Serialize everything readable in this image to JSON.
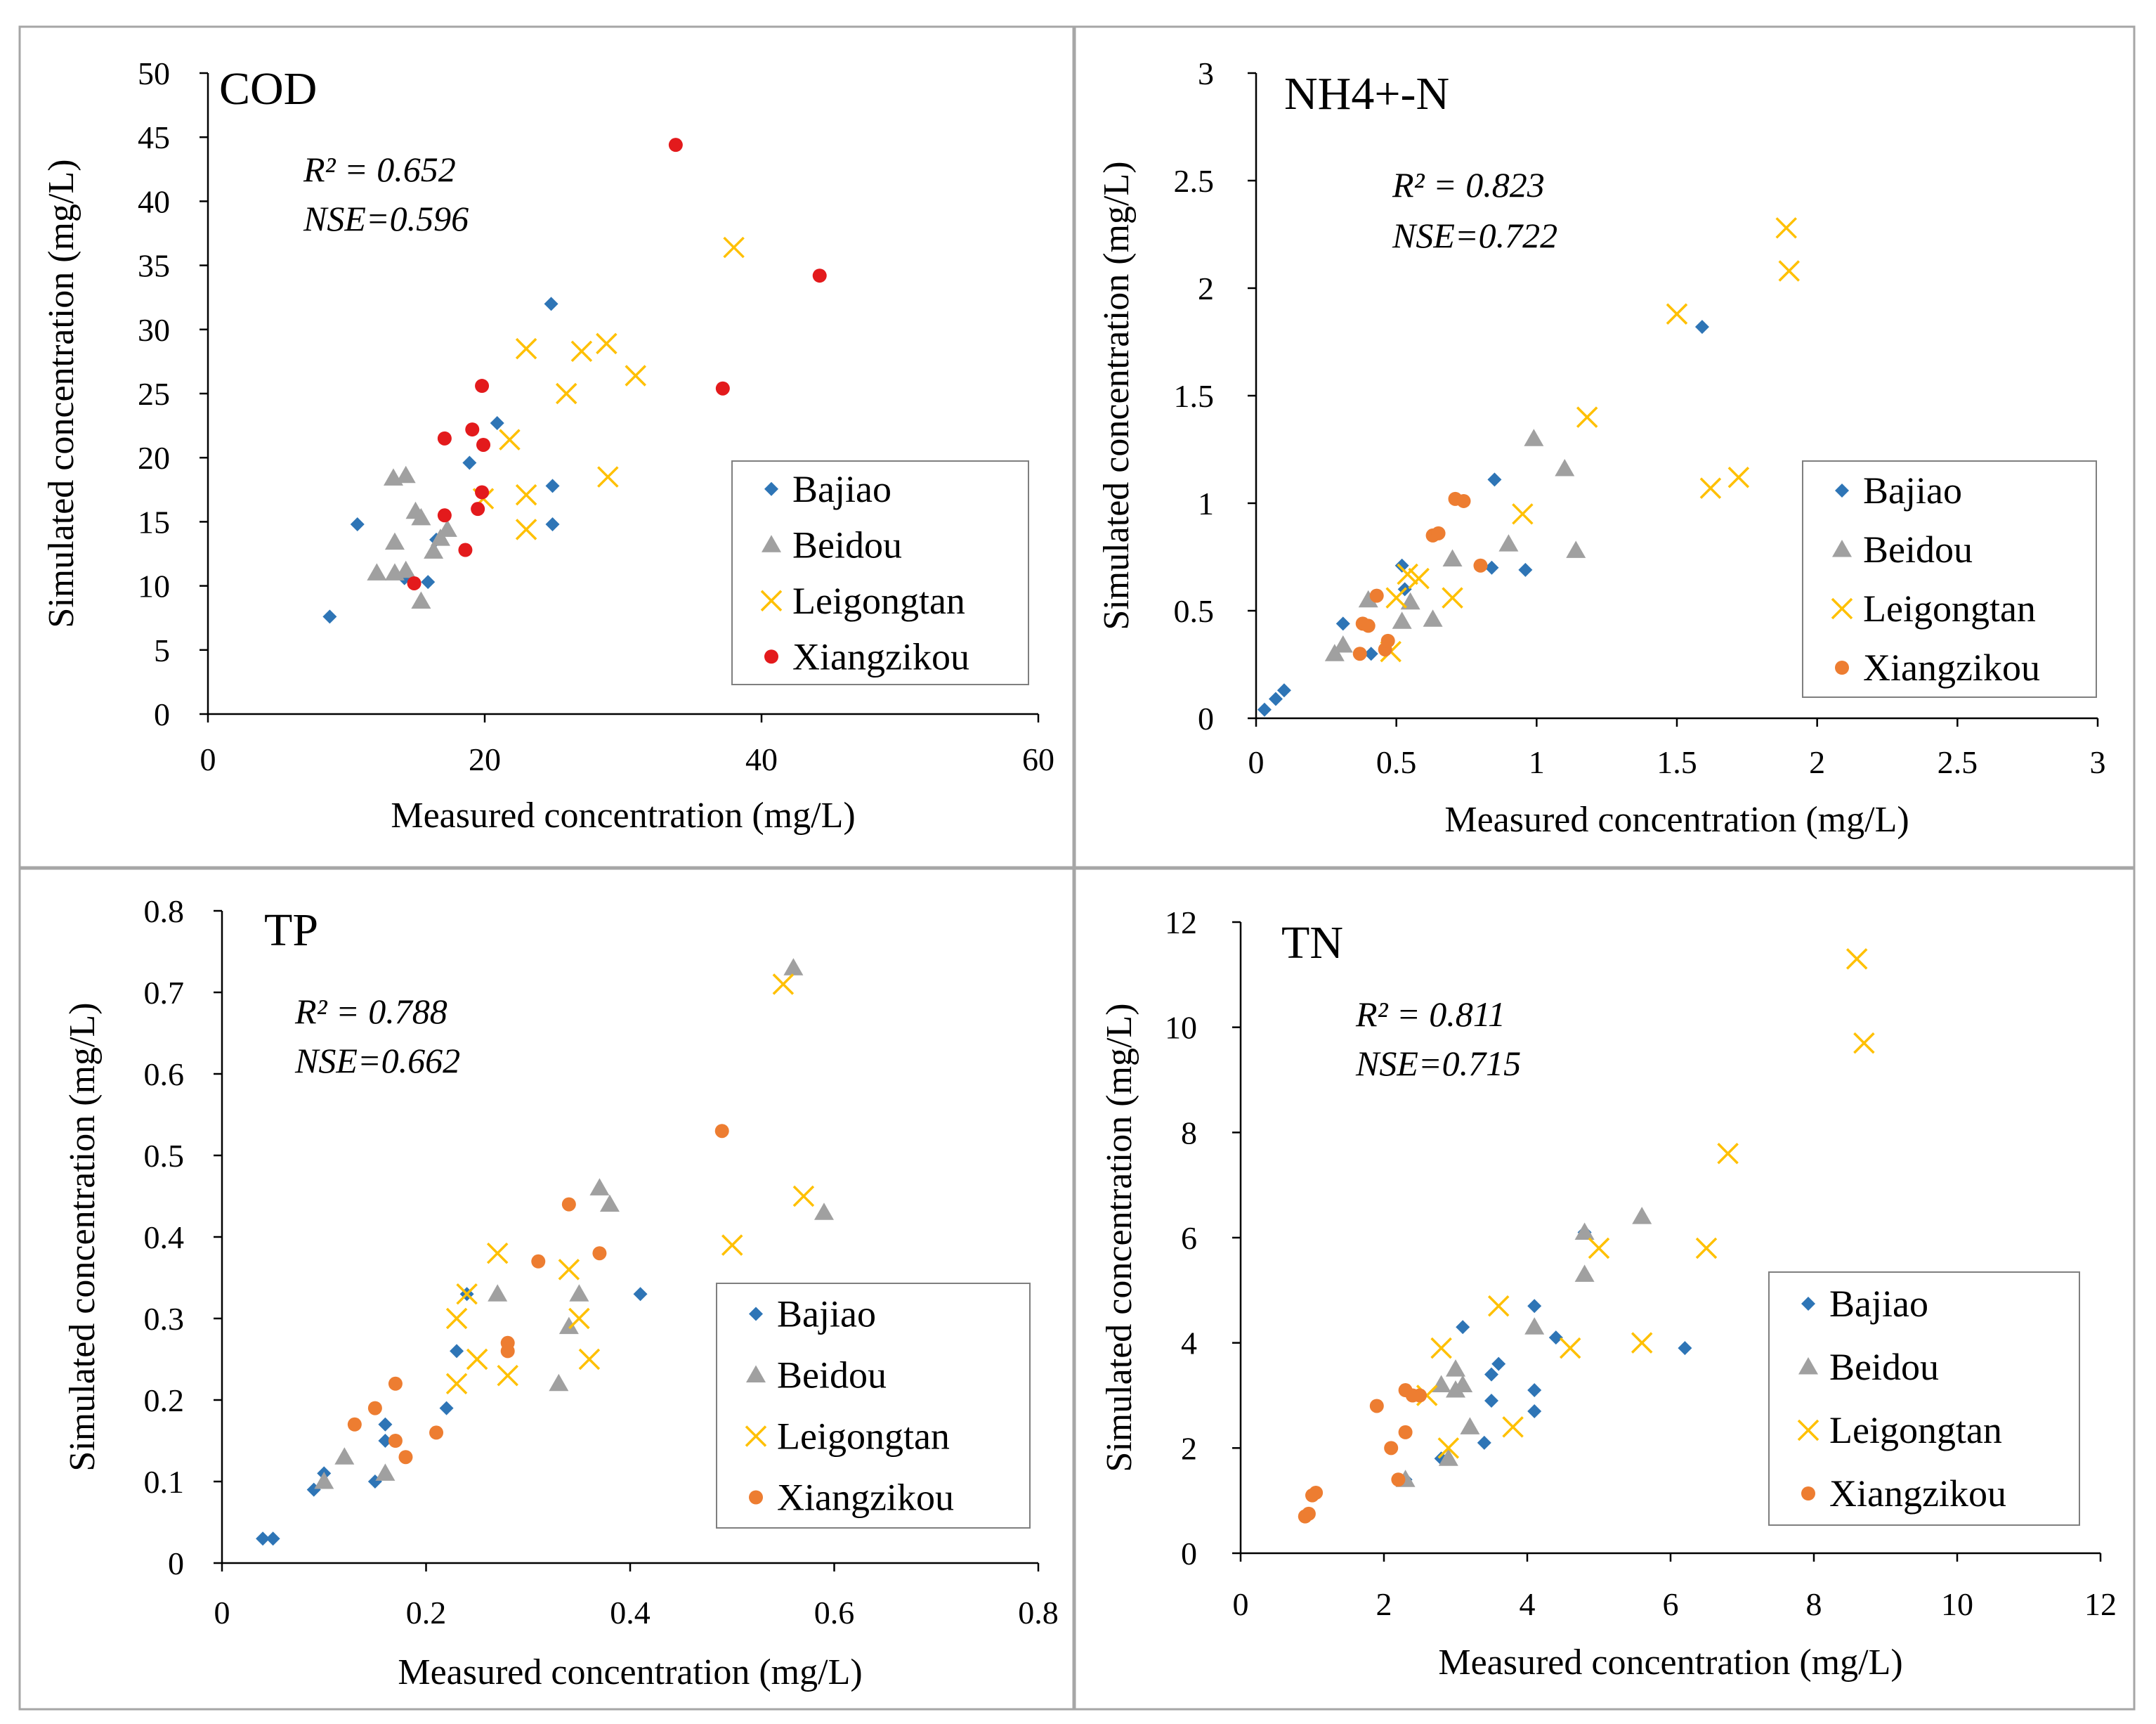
{
  "colors": {
    "Bajiao": "#2E75B6",
    "Beidou": "#A0A0A0",
    "Leigongtan": "#FFC000",
    "Xiangzikou_red": "#E31A1C",
    "Xiangzikou_orange": "#ED7D31",
    "frame": "#A6A6A6",
    "axis": "#000000"
  },
  "chart_data": [
    {
      "type": "scatter",
      "title": "COD",
      "stats": [
        "R² = 0.652",
        "NSE=0.596"
      ],
      "xlabel": "Measured  concentration (mg/L)",
      "ylabel": "Simulated concentration (mg/L)",
      "xlim": [
        0,
        60
      ],
      "ylim": [
        0,
        50
      ],
      "xticks": [
        0,
        20,
        40,
        60
      ],
      "yticks": [
        0,
        5,
        10,
        15,
        20,
        25,
        30,
        35,
        40,
        45,
        50
      ],
      "xtick_labels": [
        "0",
        "20",
        "40",
        "60"
      ],
      "ytick_labels": [
        "0",
        "5",
        "10",
        "15",
        "20",
        "25",
        "30",
        "35",
        "40",
        "45",
        "50"
      ],
      "legend_position": "bottom-right",
      "legend": [
        "Bajiao",
        "Beidou",
        "Leigongtan",
        "Xiangzikou"
      ],
      "series": [
        {
          "name": "Bajiao",
          "marker": "diamond",
          "color_key": "Bajiao",
          "points": [
            [
              8.8,
              7.6
            ],
            [
              10.8,
              14.8
            ],
            [
              14.2,
              10.6
            ],
            [
              15.9,
              10.3
            ],
            [
              16.5,
              13.6
            ],
            [
              18.9,
              19.6
            ],
            [
              20.9,
              22.7
            ],
            [
              24.8,
              32.0
            ],
            [
              24.9,
              17.8
            ],
            [
              24.9,
              14.8
            ]
          ]
        },
        {
          "name": "Beidou",
          "marker": "triangle",
          "color_key": "Beidou",
          "points": [
            [
              12.2,
              11.0
            ],
            [
              13.4,
              18.4
            ],
            [
              14.3,
              18.6
            ],
            [
              13.5,
              13.4
            ],
            [
              14.3,
              11.2
            ],
            [
              13.5,
              11.0
            ],
            [
              15.0,
              15.8
            ],
            [
              15.4,
              15.3
            ],
            [
              15.4,
              8.8
            ],
            [
              16.3,
              12.7
            ],
            [
              17.3,
              14.4
            ],
            [
              16.8,
              13.7
            ]
          ]
        },
        {
          "name": "Leigongtan",
          "marker": "x",
          "color_key": "Leigongtan",
          "points": [
            [
              19.9,
              16.8
            ],
            [
              21.8,
              21.4
            ],
            [
              23.0,
              28.5
            ],
            [
              23.0,
              17.1
            ],
            [
              23.0,
              14.4
            ],
            [
              25.9,
              25.0
            ],
            [
              27.0,
              28.3
            ],
            [
              28.8,
              28.9
            ],
            [
              28.9,
              18.5
            ],
            [
              30.9,
              26.4
            ],
            [
              38.0,
              36.4
            ]
          ]
        },
        {
          "name": "Xiangzikou",
          "marker": "circle",
          "color_key": "Xiangzikou_red",
          "points": [
            [
              14.9,
              10.2
            ],
            [
              17.1,
              21.5
            ],
            [
              17.1,
              15.5
            ],
            [
              18.6,
              12.8
            ],
            [
              19.1,
              22.2
            ],
            [
              19.8,
              25.6
            ],
            [
              19.9,
              21.0
            ],
            [
              19.8,
              17.3
            ],
            [
              19.5,
              16.0
            ],
            [
              33.8,
              44.4
            ],
            [
              37.2,
              25.4
            ],
            [
              44.2,
              34.2
            ]
          ]
        }
      ]
    },
    {
      "type": "scatter",
      "title": "NH4+-N",
      "stats": [
        "R² = 0.823",
        "NSE=0.722"
      ],
      "xlabel": "Measured  concentration (mg/L)",
      "ylabel": "Simulated concentration (mg/L)",
      "xlim": [
        0,
        3
      ],
      "ylim": [
        0,
        3
      ],
      "xticks": [
        0,
        0.5,
        1,
        1.5,
        2,
        2.5,
        3
      ],
      "yticks": [
        0,
        0.5,
        1,
        1.5,
        2,
        2.5,
        3
      ],
      "xtick_labels": [
        "0",
        "0.5",
        "1",
        "1.5",
        "2",
        "2.5",
        "3"
      ],
      "ytick_labels": [
        "0",
        "0.5",
        "1",
        "1.5",
        "2",
        "2.5",
        "3"
      ],
      "legend_position": "bottom-right",
      "legend": [
        "Bajiao",
        "Beidou",
        "Leigongtan",
        "Xiangzikou"
      ],
      "series": [
        {
          "name": "Bajiao",
          "marker": "diamond",
          "color_key": "Bajiao",
          "points": [
            [
              0.03,
              0.04
            ],
            [
              0.07,
              0.09
            ],
            [
              0.1,
              0.13
            ],
            [
              0.31,
              0.44
            ],
            [
              0.41,
              0.3
            ],
            [
              0.52,
              0.71
            ],
            [
              0.53,
              0.6
            ],
            [
              0.84,
              0.7
            ],
            [
              0.85,
              1.11
            ],
            [
              0.96,
              0.69
            ],
            [
              1.59,
              1.82
            ]
          ]
        },
        {
          "name": "Beidou",
          "marker": "triangle",
          "color_key": "Beidou",
          "points": [
            [
              0.28,
              0.3
            ],
            [
              0.31,
              0.34
            ],
            [
              0.4,
              0.55
            ],
            [
              0.52,
              0.45
            ],
            [
              0.55,
              0.54
            ],
            [
              0.63,
              0.46
            ],
            [
              0.7,
              0.74
            ],
            [
              0.9,
              0.81
            ],
            [
              0.99,
              1.3
            ],
            [
              1.1,
              1.16
            ],
            [
              1.14,
              0.78
            ]
          ]
        },
        {
          "name": "Leigongtan",
          "marker": "x",
          "color_key": "Leigongtan",
          "points": [
            [
              0.48,
              0.31
            ],
            [
              0.5,
              0.56
            ],
            [
              0.54,
              0.67
            ],
            [
              0.58,
              0.65
            ],
            [
              0.7,
              0.56
            ],
            [
              0.95,
              0.95
            ],
            [
              1.18,
              1.4
            ],
            [
              1.5,
              1.88
            ],
            [
              1.62,
              1.07
            ],
            [
              1.72,
              1.12
            ],
            [
              1.89,
              2.28
            ],
            [
              1.9,
              2.08
            ]
          ]
        },
        {
          "name": "Xiangzikou",
          "marker": "circle",
          "color_key": "Xiangzikou_orange",
          "points": [
            [
              0.37,
              0.3
            ],
            [
              0.38,
              0.44
            ],
            [
              0.4,
              0.43
            ],
            [
              0.43,
              0.57
            ],
            [
              0.46,
              0.32
            ],
            [
              0.47,
              0.36
            ],
            [
              0.63,
              0.85
            ],
            [
              0.65,
              0.86
            ],
            [
              0.71,
              1.02
            ],
            [
              0.74,
              1.01
            ],
            [
              0.8,
              0.71
            ]
          ]
        }
      ]
    },
    {
      "type": "scatter",
      "title": "TP",
      "stats": [
        "R² = 0.788",
        "NSE=0.662"
      ],
      "xlabel": "Measured  concentration (mg/L)",
      "ylabel": "Simulated concentration (mg/L)",
      "xlim": [
        0,
        0.8
      ],
      "ylim": [
        0,
        0.8
      ],
      "xticks": [
        0,
        0.2,
        0.4,
        0.6,
        0.8
      ],
      "yticks": [
        0,
        0.1,
        0.2,
        0.3,
        0.4,
        0.5,
        0.6,
        0.7,
        0.8
      ],
      "xtick_labels": [
        "0",
        "0.2",
        "0.4",
        "0.6",
        "0.8"
      ],
      "ytick_labels": [
        "0",
        "0.1",
        "0.2",
        "0.3",
        "0.4",
        "0.5",
        "0.6",
        "0.7",
        "0.8"
      ],
      "legend_position": "bottom-right",
      "legend": [
        "Bajiao",
        "Beidou",
        "Leigongtan",
        "Xiangzikou"
      ],
      "series": [
        {
          "name": "Bajiao",
          "marker": "diamond",
          "color_key": "Bajiao",
          "points": [
            [
              0.04,
              0.03
            ],
            [
              0.05,
              0.03
            ],
            [
              0.09,
              0.09
            ],
            [
              0.1,
              0.11
            ],
            [
              0.15,
              0.1
            ],
            [
              0.16,
              0.17
            ],
            [
              0.16,
              0.15
            ],
            [
              0.22,
              0.19
            ],
            [
              0.23,
              0.26
            ],
            [
              0.24,
              0.33
            ],
            [
              0.41,
              0.33
            ]
          ]
        },
        {
          "name": "Beidou",
          "marker": "triangle",
          "color_key": "Beidou",
          "points": [
            [
              0.1,
              0.1
            ],
            [
              0.12,
              0.13
            ],
            [
              0.16,
              0.11
            ],
            [
              0.27,
              0.33
            ],
            [
              0.33,
              0.22
            ],
            [
              0.34,
              0.29
            ],
            [
              0.35,
              0.33
            ],
            [
              0.37,
              0.46
            ],
            [
              0.38,
              0.44
            ],
            [
              0.56,
              0.73
            ],
            [
              0.59,
              0.43
            ]
          ]
        },
        {
          "name": "Leigongtan",
          "marker": "x",
          "color_key": "Leigongtan",
          "points": [
            [
              0.23,
              0.3
            ],
            [
              0.23,
              0.22
            ],
            [
              0.24,
              0.33
            ],
            [
              0.25,
              0.25
            ],
            [
              0.27,
              0.38
            ],
            [
              0.28,
              0.23
            ],
            [
              0.34,
              0.36
            ],
            [
              0.35,
              0.3
            ],
            [
              0.36,
              0.25
            ],
            [
              0.5,
              0.39
            ],
            [
              0.55,
              0.71
            ],
            [
              0.57,
              0.45
            ]
          ]
        },
        {
          "name": "Xiangzikou",
          "marker": "circle",
          "color_key": "Xiangzikou_orange",
          "points": [
            [
              0.13,
              0.17
            ],
            [
              0.15,
              0.19
            ],
            [
              0.17,
              0.22
            ],
            [
              0.17,
              0.15
            ],
            [
              0.18,
              0.13
            ],
            [
              0.21,
              0.16
            ],
            [
              0.28,
              0.27
            ],
            [
              0.28,
              0.26
            ],
            [
              0.31,
              0.37
            ],
            [
              0.34,
              0.44
            ],
            [
              0.37,
              0.38
            ],
            [
              0.49,
              0.53
            ]
          ]
        }
      ]
    },
    {
      "type": "scatter",
      "title": "TN",
      "stats": [
        "R² = 0.811",
        "NSE=0.715"
      ],
      "xlabel": "Measured  concentration (mg/L)",
      "ylabel": "Simulated concentration (mg/L)",
      "xlim": [
        0,
        12
      ],
      "ylim": [
        0,
        12
      ],
      "xticks": [
        0,
        2,
        4,
        6,
        8,
        10,
        12
      ],
      "yticks": [
        0,
        2,
        4,
        6,
        8,
        10,
        12
      ],
      "xtick_labels": [
        "0",
        "2",
        "4",
        "6",
        "8",
        "10",
        "12"
      ],
      "ytick_labels": [
        "0",
        "2",
        "4",
        "6",
        "8",
        "10",
        "12"
      ],
      "legend_position": "bottom-right",
      "legend": [
        "Bajiao",
        "Beidou",
        "Leigongtan",
        "Xiangzikou"
      ],
      "series": [
        {
          "name": "Bajiao",
          "marker": "diamond",
          "color_key": "Bajiao",
          "points": [
            [
              2.3,
              1.4
            ],
            [
              2.8,
              1.8
            ],
            [
              3.1,
              4.3
            ],
            [
              3.4,
              2.1
            ],
            [
              3.5,
              2.9
            ],
            [
              3.5,
              3.4
            ],
            [
              3.6,
              3.6
            ],
            [
              4.1,
              4.7
            ],
            [
              4.1,
              3.1
            ],
            [
              4.1,
              2.7
            ],
            [
              4.4,
              4.1
            ],
            [
              4.8,
              6.1
            ],
            [
              6.2,
              3.9
            ]
          ]
        },
        {
          "name": "Beidou",
          "marker": "triangle",
          "color_key": "Beidou",
          "points": [
            [
              2.3,
              1.4
            ],
            [
              2.8,
              3.2
            ],
            [
              2.9,
              1.8
            ],
            [
              3.0,
              3.5
            ],
            [
              3.0,
              3.1
            ],
            [
              3.1,
              3.2
            ],
            [
              3.2,
              2.4
            ],
            [
              4.1,
              4.3
            ],
            [
              4.8,
              6.1
            ],
            [
              4.8,
              5.3
            ],
            [
              5.6,
              6.4
            ]
          ]
        },
        {
          "name": "Leigongtan",
          "marker": "x",
          "color_key": "Leigongtan",
          "points": [
            [
              2.6,
              3.0
            ],
            [
              2.8,
              3.9
            ],
            [
              2.9,
              2.0
            ],
            [
              3.6,
              4.7
            ],
            [
              3.8,
              2.4
            ],
            [
              4.6,
              3.9
            ],
            [
              5.0,
              5.8
            ],
            [
              5.6,
              4.0
            ],
            [
              6.5,
              5.8
            ],
            [
              6.8,
              7.6
            ],
            [
              8.6,
              11.3
            ],
            [
              8.7,
              9.7
            ]
          ]
        },
        {
          "name": "Xiangzikou",
          "marker": "circle",
          "color_key": "Xiangzikou_orange",
          "points": [
            [
              0.9,
              0.7
            ],
            [
              0.95,
              0.75
            ],
            [
              1.0,
              1.1
            ],
            [
              1.05,
              1.15
            ],
            [
              1.9,
              2.8
            ],
            [
              2.1,
              2.0
            ],
            [
              2.2,
              1.4
            ],
            [
              2.3,
              3.1
            ],
            [
              2.3,
              2.3
            ],
            [
              2.4,
              3.0
            ],
            [
              2.5,
              3.0
            ]
          ]
        }
      ]
    }
  ]
}
